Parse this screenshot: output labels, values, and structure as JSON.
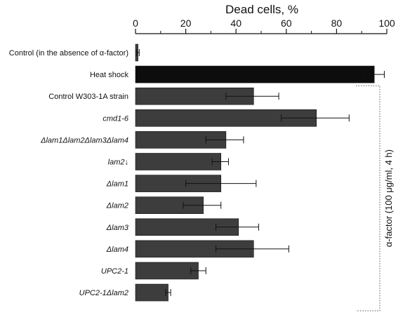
{
  "chart_data": {
    "type": "bar",
    "orientation": "horizontal",
    "title": "Dead cells, %",
    "xlim": [
      0,
      100
    ],
    "xticks": [
      0,
      20,
      40,
      60,
      80,
      100
    ],
    "categories": [
      "Control (in the absence of α-factor)",
      "Heat shock",
      "Control W303-1A strain",
      "cmd1-6",
      "Δlam1Δlam2Δlam3Δlam4",
      "lam2↓",
      "Δlam1",
      "Δlam2",
      "Δlam3",
      "Δlam4",
      "UPC2-1",
      "UPC2-1Δlam2"
    ],
    "italic": [
      false,
      false,
      false,
      true,
      true,
      true,
      true,
      true,
      true,
      true,
      true,
      true
    ],
    "values": [
      1,
      95,
      47,
      72,
      36,
      34,
      34,
      27,
      41,
      47,
      25,
      13
    ],
    "error_low": [
      0.5,
      4,
      11,
      14,
      8,
      3.5,
      14,
      8,
      9,
      15,
      3,
      1
    ],
    "error_high": [
      0.5,
      4,
      10,
      13,
      7,
      3,
      14,
      7,
      8,
      14,
      3,
      1
    ],
    "bar_colors": [
      "#3d3d3d",
      "#0d0d0d",
      "#3d3d3d",
      "#3d3d3d",
      "#3d3d3d",
      "#3d3d3d",
      "#3d3d3d",
      "#3d3d3d",
      "#3d3d3d",
      "#3d3d3d",
      "#3d3d3d",
      "#3d3d3d"
    ],
    "bracket": {
      "label": "α-factor (100 μg/ml, 4 h)",
      "from_category": 2,
      "to_category": 11
    },
    "grid": false
  }
}
